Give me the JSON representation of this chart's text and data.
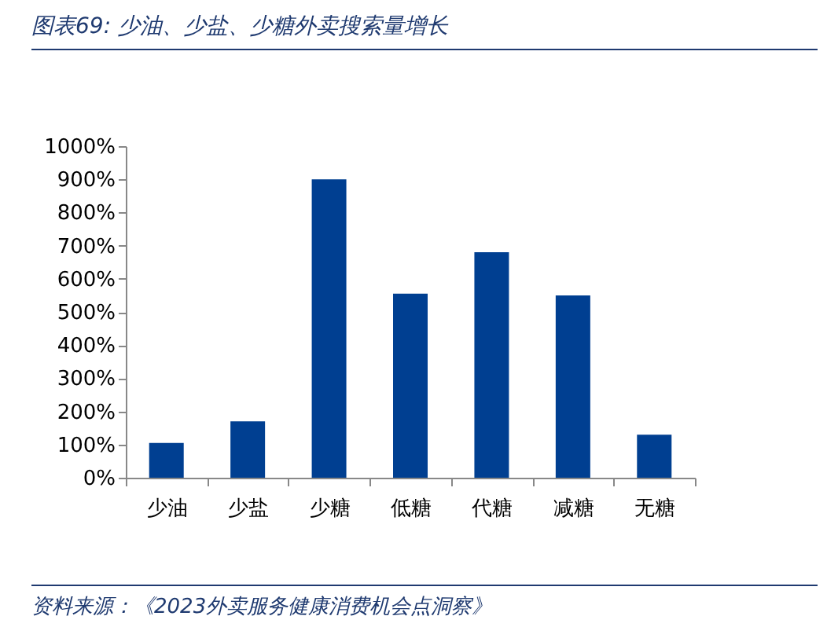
{
  "chart_data": {
    "type": "bar",
    "title": "图表69: 少油、少盐、少糖外卖搜索量增长",
    "categories": [
      "少油",
      "少盐",
      "少糖",
      "低糖",
      "代糖",
      "减糖",
      "无糖"
    ],
    "values": [
      105,
      170,
      900,
      555,
      680,
      550,
      130
    ],
    "color": "#003f91",
    "ylim": [
      0,
      1000
    ],
    "yticks": [
      {
        "value": 0,
        "label": "0%"
      },
      {
        "value": 100,
        "label": "100%"
      },
      {
        "value": 200,
        "label": "200%"
      },
      {
        "value": 300,
        "label": "300%"
      },
      {
        "value": 400,
        "label": "400%"
      },
      {
        "value": 500,
        "label": "500%"
      },
      {
        "value": 600,
        "label": "600%"
      },
      {
        "value": 700,
        "label": "700%"
      },
      {
        "value": 800,
        "label": "800%"
      },
      {
        "value": 900,
        "label": "900%"
      },
      {
        "value": 1000,
        "label": "1000%"
      }
    ],
    "grid": false,
    "annotations": [
      "资料来源：《2023外卖服务健康消费机会点洞察》"
    ]
  }
}
